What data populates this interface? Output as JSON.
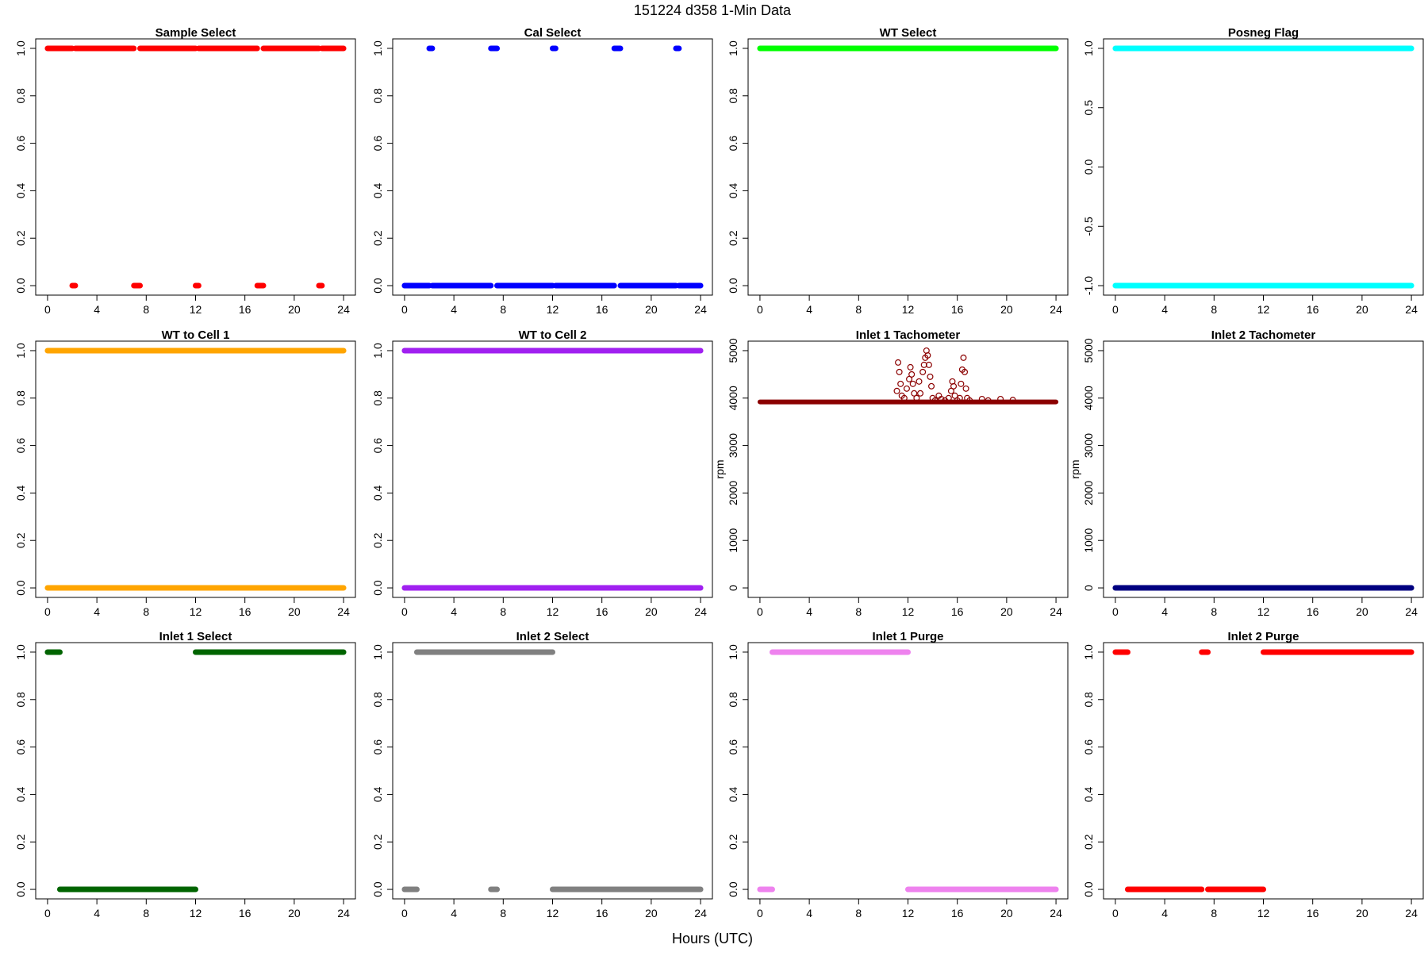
{
  "suptitle": "151224   d358   1-Min Data",
  "xlabel": "Hours (UTC)",
  "chart_data": [
    {
      "type": "scatter",
      "title": "Sample Select",
      "color": "#ff0000",
      "marker": "filled",
      "ylabel": "",
      "xlim": [
        0,
        24
      ],
      "ylim": [
        0,
        1
      ],
      "xticks": [
        0,
        4,
        8,
        12,
        16,
        20,
        24
      ],
      "yticks": [
        0,
        0.2,
        0.4,
        0.6,
        0.8,
        1.0
      ],
      "ytick_labels": [
        "0.0",
        "0.2",
        "0.4",
        "0.6",
        "0.8",
        "1.0"
      ],
      "segments": [
        {
          "y": 1,
          "x": [
            0,
            2.0
          ]
        },
        {
          "y": 1,
          "x": [
            2.25,
            7.0
          ]
        },
        {
          "y": 1,
          "x": [
            7.5,
            12.0
          ]
        },
        {
          "y": 1,
          "x": [
            12.25,
            17.0
          ]
        },
        {
          "y": 1,
          "x": [
            17.5,
            22.0
          ]
        },
        {
          "y": 1,
          "x": [
            22.25,
            24
          ]
        },
        {
          "y": 0,
          "x": [
            2.0,
            2.25
          ]
        },
        {
          "y": 0,
          "x": [
            7.0,
            7.5
          ]
        },
        {
          "y": 0,
          "x": [
            12.0,
            12.25
          ]
        },
        {
          "y": 0,
          "x": [
            17.0,
            17.5
          ]
        },
        {
          "y": 0,
          "x": [
            22.0,
            22.25
          ]
        }
      ]
    },
    {
      "type": "scatter",
      "title": "Cal Select",
      "color": "#0000ff",
      "marker": "filled",
      "ylabel": "",
      "xlim": [
        0,
        24
      ],
      "ylim": [
        0,
        1
      ],
      "xticks": [
        0,
        4,
        8,
        12,
        16,
        20,
        24
      ],
      "yticks": [
        0,
        0.2,
        0.4,
        0.6,
        0.8,
        1.0
      ],
      "ytick_labels": [
        "0.0",
        "0.2",
        "0.4",
        "0.6",
        "0.8",
        "1.0"
      ],
      "segments": [
        {
          "y": 1,
          "x": [
            2.0,
            2.25
          ]
        },
        {
          "y": 1,
          "x": [
            7.0,
            7.5
          ]
        },
        {
          "y": 1,
          "x": [
            12.0,
            12.25
          ]
        },
        {
          "y": 1,
          "x": [
            17.0,
            17.5
          ]
        },
        {
          "y": 1,
          "x": [
            22.0,
            22.25
          ]
        },
        {
          "y": 0,
          "x": [
            0,
            2.0
          ]
        },
        {
          "y": 0,
          "x": [
            2.25,
            7.0
          ]
        },
        {
          "y": 0,
          "x": [
            7.5,
            12.0
          ]
        },
        {
          "y": 0,
          "x": [
            12.25,
            17.0
          ]
        },
        {
          "y": 0,
          "x": [
            17.5,
            22.0
          ]
        },
        {
          "y": 0,
          "x": [
            22.25,
            24
          ]
        }
      ]
    },
    {
      "type": "scatter",
      "title": "WT Select",
      "color": "#00ff00",
      "marker": "filled",
      "ylabel": "",
      "xlim": [
        0,
        24
      ],
      "ylim": [
        0,
        1
      ],
      "xticks": [
        0,
        4,
        8,
        12,
        16,
        20,
        24
      ],
      "yticks": [
        0,
        0.2,
        0.4,
        0.6,
        0.8,
        1.0
      ],
      "ytick_labels": [
        "0.0",
        "0.2",
        "0.4",
        "0.6",
        "0.8",
        "1.0"
      ],
      "segments": [
        {
          "y": 1,
          "x": [
            0,
            24
          ]
        }
      ]
    },
    {
      "type": "scatter",
      "title": "Posneg Flag",
      "color": "#00ffff",
      "marker": "filled",
      "ylabel": "",
      "xlim": [
        0,
        24
      ],
      "ylim": [
        -1,
        1
      ],
      "xticks": [
        0,
        4,
        8,
        12,
        16,
        20,
        24
      ],
      "yticks": [
        -1.0,
        -0.5,
        0.0,
        0.5,
        1.0
      ],
      "ytick_labels": [
        "-1.0",
        "-0.5",
        "0.0",
        "0.5",
        "1.0"
      ],
      "segments": [
        {
          "y": 1,
          "x": [
            0,
            24
          ]
        },
        {
          "y": -1,
          "x": [
            0,
            24
          ]
        }
      ]
    },
    {
      "type": "scatter",
      "title": "WT to Cell 1",
      "color": "#ffa500",
      "marker": "filled",
      "ylabel": "",
      "xlim": [
        0,
        24
      ],
      "ylim": [
        0,
        1
      ],
      "xticks": [
        0,
        4,
        8,
        12,
        16,
        20,
        24
      ],
      "yticks": [
        0,
        0.2,
        0.4,
        0.6,
        0.8,
        1.0
      ],
      "ytick_labels": [
        "0.0",
        "0.2",
        "0.4",
        "0.6",
        "0.8",
        "1.0"
      ],
      "segments": [
        {
          "y": 1,
          "x": [
            0,
            24
          ]
        },
        {
          "y": 0,
          "x": [
            0,
            24
          ]
        }
      ]
    },
    {
      "type": "scatter",
      "title": "WT to Cell 2",
      "color": "#a020f0",
      "marker": "filled",
      "ylabel": "",
      "xlim": [
        0,
        24
      ],
      "ylim": [
        0,
        1
      ],
      "xticks": [
        0,
        4,
        8,
        12,
        16,
        20,
        24
      ],
      "yticks": [
        0,
        0.2,
        0.4,
        0.6,
        0.8,
        1.0
      ],
      "ytick_labels": [
        "0.0",
        "0.2",
        "0.4",
        "0.6",
        "0.8",
        "1.0"
      ],
      "segments": [
        {
          "y": 1,
          "x": [
            0,
            24
          ]
        },
        {
          "y": 0,
          "x": [
            0,
            24
          ]
        }
      ]
    },
    {
      "type": "scatter",
      "title": "Inlet 1 Tachometer",
      "color": "#8b0000",
      "marker": "open",
      "ylabel": "rpm",
      "xlim": [
        0,
        24
      ],
      "ylim": [
        0,
        5000
      ],
      "xticks": [
        0,
        4,
        8,
        12,
        16,
        20,
        24
      ],
      "yticks": [
        0,
        1000,
        2000,
        3000,
        4000,
        5000
      ],
      "ytick_labels": [
        "0",
        "1000",
        "2000",
        "3000",
        "4000",
        "5000"
      ],
      "baseline": {
        "y": 3920,
        "x": [
          0,
          24
        ]
      },
      "points": [
        [
          11.1,
          4150
        ],
        [
          11.2,
          4750
        ],
        [
          11.3,
          4550
        ],
        [
          11.4,
          4300
        ],
        [
          11.5,
          4050
        ],
        [
          11.7,
          4000
        ],
        [
          11.9,
          4200
        ],
        [
          12.1,
          4400
        ],
        [
          12.2,
          4650
        ],
        [
          12.3,
          4500
        ],
        [
          12.4,
          4300
        ],
        [
          12.5,
          4100
        ],
        [
          12.7,
          4000
        ],
        [
          12.9,
          4350
        ],
        [
          13.0,
          4100
        ],
        [
          13.2,
          4550
        ],
        [
          13.3,
          4700
        ],
        [
          13.4,
          4850
        ],
        [
          13.5,
          5000
        ],
        [
          13.6,
          4900
        ],
        [
          13.7,
          4700
        ],
        [
          13.8,
          4450
        ],
        [
          13.9,
          4250
        ],
        [
          14.0,
          4000
        ],
        [
          14.2,
          3950
        ],
        [
          14.5,
          4050
        ],
        [
          14.7,
          3980
        ],
        [
          15.0,
          3950
        ],
        [
          15.3,
          4000
        ],
        [
          15.5,
          4150
        ],
        [
          15.6,
          4350
        ],
        [
          15.7,
          4250
        ],
        [
          15.8,
          4050
        ],
        [
          16.0,
          3950
        ],
        [
          16.2,
          4000
        ],
        [
          16.3,
          4300
        ],
        [
          16.4,
          4600
        ],
        [
          16.5,
          4850
        ],
        [
          16.6,
          4550
        ],
        [
          16.7,
          4200
        ],
        [
          16.8,
          4000
        ],
        [
          17.0,
          3950
        ],
        [
          18.0,
          3980
        ],
        [
          18.5,
          3950
        ],
        [
          19.5,
          3980
        ],
        [
          20.5,
          3960
        ]
      ]
    },
    {
      "type": "scatter",
      "title": "Inlet 2 Tachometer",
      "color": "#000080",
      "marker": "filled",
      "ylabel": "rpm",
      "xlim": [
        0,
        24
      ],
      "ylim": [
        0,
        5000
      ],
      "xticks": [
        0,
        4,
        8,
        12,
        16,
        20,
        24
      ],
      "yticks": [
        0,
        1000,
        2000,
        3000,
        4000,
        5000
      ],
      "ytick_labels": [
        "0",
        "1000",
        "2000",
        "3000",
        "4000",
        "5000"
      ],
      "segments": [
        {
          "y": 0,
          "x": [
            0,
            24
          ]
        }
      ]
    },
    {
      "type": "scatter",
      "title": "Inlet 1 Select",
      "color": "#006400",
      "marker": "filled",
      "ylabel": "",
      "xlim": [
        0,
        24
      ],
      "ylim": [
        0,
        1
      ],
      "xticks": [
        0,
        4,
        8,
        12,
        16,
        20,
        24
      ],
      "yticks": [
        0,
        0.2,
        0.4,
        0.6,
        0.8,
        1.0
      ],
      "ytick_labels": [
        "0.0",
        "0.2",
        "0.4",
        "0.6",
        "0.8",
        "1.0"
      ],
      "segments": [
        {
          "y": 1,
          "x": [
            0,
            1.0
          ]
        },
        {
          "y": 1,
          "x": [
            12.0,
            24
          ]
        },
        {
          "y": 0,
          "x": [
            1.0,
            12.0
          ]
        }
      ]
    },
    {
      "type": "scatter",
      "title": "Inlet 2 Select",
      "color": "#808080",
      "marker": "filled",
      "ylabel": "",
      "xlim": [
        0,
        24
      ],
      "ylim": [
        0,
        1
      ],
      "xticks": [
        0,
        4,
        8,
        12,
        16,
        20,
        24
      ],
      "yticks": [
        0,
        0.2,
        0.4,
        0.6,
        0.8,
        1.0
      ],
      "ytick_labels": [
        "0.0",
        "0.2",
        "0.4",
        "0.6",
        "0.8",
        "1.0"
      ],
      "segments": [
        {
          "y": 1,
          "x": [
            1.0,
            12.0
          ]
        },
        {
          "y": 0,
          "x": [
            0,
            1.0
          ]
        },
        {
          "y": 0,
          "x": [
            7.0,
            7.5
          ]
        },
        {
          "y": 0,
          "x": [
            12.0,
            24
          ]
        }
      ]
    },
    {
      "type": "scatter",
      "title": "Inlet 1 Purge",
      "color": "#ee82ee",
      "marker": "filled",
      "ylabel": "",
      "xlim": [
        0,
        24
      ],
      "ylim": [
        0,
        1
      ],
      "xticks": [
        0,
        4,
        8,
        12,
        16,
        20,
        24
      ],
      "yticks": [
        0,
        0.2,
        0.4,
        0.6,
        0.8,
        1.0
      ],
      "ytick_labels": [
        "0.0",
        "0.2",
        "0.4",
        "0.6",
        "0.8",
        "1.0"
      ],
      "segments": [
        {
          "y": 1,
          "x": [
            1.0,
            12.0
          ]
        },
        {
          "y": 0,
          "x": [
            0,
            1.0
          ]
        },
        {
          "y": 0,
          "x": [
            12.0,
            24
          ]
        }
      ]
    },
    {
      "type": "scatter",
      "title": "Inlet 2 Purge",
      "color": "#ff0000",
      "marker": "filled",
      "ylabel": "",
      "xlim": [
        0,
        24
      ],
      "ylim": [
        0,
        1
      ],
      "xticks": [
        0,
        4,
        8,
        12,
        16,
        20,
        24
      ],
      "yticks": [
        0,
        0.2,
        0.4,
        0.6,
        0.8,
        1.0
      ],
      "ytick_labels": [
        "0.0",
        "0.2",
        "0.4",
        "0.6",
        "0.8",
        "1.0"
      ],
      "segments": [
        {
          "y": 1,
          "x": [
            0,
            1.0
          ]
        },
        {
          "y": 1,
          "x": [
            7.0,
            7.5
          ]
        },
        {
          "y": 1,
          "x": [
            12.0,
            24
          ]
        },
        {
          "y": 0,
          "x": [
            1.0,
            7.0
          ]
        },
        {
          "y": 0,
          "x": [
            7.5,
            12.0
          ]
        }
      ]
    }
  ]
}
